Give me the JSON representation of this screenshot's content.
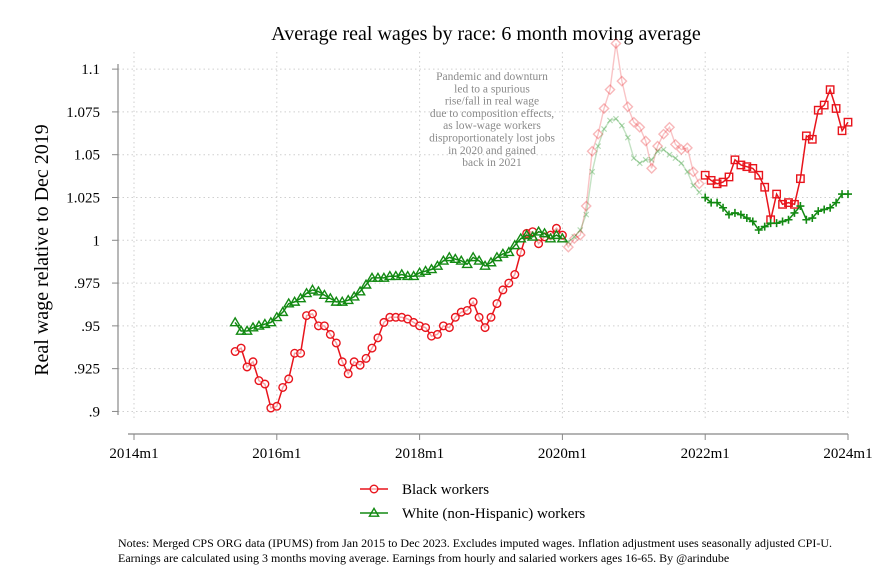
{
  "chart_data": {
    "type": "line",
    "title": "Average real wages by race: 6 month moving average",
    "ylabel": "Real wage  relative to Dec 2019",
    "xlabel": "",
    "x_ticks": [
      "2014m1",
      "2016m1",
      "2018m1",
      "2020m1",
      "2022m1",
      "2024m1"
    ],
    "y_ticks": [
      "1.1",
      "1.075",
      "1.05",
      "1.025",
      "1",
      ".975",
      ".95",
      ".925",
      ".9"
    ],
    "y_tick_values": [
      1.1,
      1.075,
      1.05,
      1.025,
      1.0,
      0.975,
      0.95,
      0.925,
      0.9
    ],
    "xlim": [
      "2014m1",
      "2024m1"
    ],
    "ylim": [
      0.895,
      1.11
    ],
    "grid": true,
    "legend_position": "bottom",
    "annotation": [
      "Pandemic and downturn",
      "led to a spurious",
      "rise/fall in real wage",
      "due to composition effects,",
      "as low-wage workers",
      "disproportionately lost jobs",
      "in 2020 and gained",
      "back in 2021"
    ],
    "faded_period": [
      "2020m1",
      "2021m12"
    ],
    "series": [
      {
        "name": "Black workers",
        "color": "#e8141c",
        "marker": "circle",
        "marker_faded": "diamond",
        "start": "2015m6",
        "values": [
          0.935,
          0.937,
          0.926,
          0.929,
          0.918,
          0.916,
          0.902,
          0.903,
          0.914,
          0.919,
          0.934,
          0.934,
          0.956,
          0.957,
          0.95,
          0.95,
          0.945,
          0.94,
          0.929,
          0.922,
          0.929,
          0.927,
          0.931,
          0.937,
          0.943,
          0.952,
          0.955,
          0.955,
          0.955,
          0.954,
          0.952,
          0.95,
          0.949,
          0.944,
          0.945,
          0.95,
          0.949,
          0.955,
          0.958,
          0.959,
          0.964,
          0.955,
          0.949,
          0.955,
          0.963,
          0.971,
          0.975,
          0.98,
          0.993,
          1.004,
          1.005,
          0.998,
          1.002,
          1.003,
          1.007,
          1.003,
          0.996,
          1.001,
          1.003,
          1.02,
          1.052,
          1.062,
          1.077,
          1.088,
          1.115,
          1.093,
          1.078,
          1.069,
          1.066,
          1.058,
          1.042,
          1.055,
          1.062,
          1.066,
          1.056,
          1.053,
          1.054,
          1.04,
          1.033,
          1.038,
          1.035,
          1.033,
          1.034,
          1.037,
          1.047,
          1.044,
          1.043,
          1.042,
          1.038,
          1.031,
          1.012,
          1.027,
          1.021,
          1.022,
          1.021,
          1.036,
          1.061,
          1.059,
          1.076,
          1.079,
          1.088,
          1.077,
          1.064,
          1.069
        ]
      },
      {
        "name": "White (non-Hispanic) workers",
        "color": "#138a13",
        "marker": "triangle",
        "marker_faded": "x",
        "start": "2015m6",
        "values": [
          0.952,
          0.947,
          0.947,
          0.949,
          0.95,
          0.951,
          0.952,
          0.955,
          0.958,
          0.963,
          0.964,
          0.966,
          0.969,
          0.971,
          0.97,
          0.968,
          0.966,
          0.964,
          0.964,
          0.965,
          0.967,
          0.97,
          0.974,
          0.978,
          0.978,
          0.978,
          0.979,
          0.979,
          0.98,
          0.979,
          0.979,
          0.981,
          0.982,
          0.983,
          0.985,
          0.988,
          0.99,
          0.989,
          0.988,
          0.986,
          0.99,
          0.988,
          0.985,
          0.987,
          0.99,
          0.992,
          0.993,
          0.997,
          1.001,
          1.003,
          1.002,
          1.005,
          1.004,
          1.001,
          1.003,
          1.001,
          0.999,
          1.002,
          1.006,
          1.015,
          1.04,
          1.055,
          1.065,
          1.07,
          1.071,
          1.067,
          1.06,
          1.048,
          1.045,
          1.047,
          1.047,
          1.052,
          1.053,
          1.05,
          1.048,
          1.045,
          1.04,
          1.032,
          1.028,
          1.025,
          1.022,
          1.022,
          1.019,
          1.015,
          1.016,
          1.015,
          1.013,
          1.011,
          1.006,
          1.008,
          1.01,
          1.01,
          1.011,
          1.012,
          1.016,
          1.02,
          1.012,
          1.013,
          1.017,
          1.018,
          1.019,
          1.022,
          1.027,
          1.027
        ]
      }
    ]
  },
  "notes": [
    "Notes: Merged CPS ORG data (IPUMS) from Jan 2015 to Dec 2023. Excludes imputed wages. Inflation adjustment uses seasonally adjusted CPI-U.",
    "Earnings are calculated using 3 months moving average. Earnings from hourly and salaried workers ages 16-65. By @arindube"
  ]
}
